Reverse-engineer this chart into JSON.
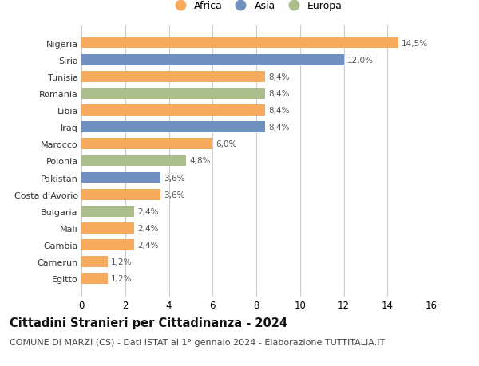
{
  "countries": [
    "Nigeria",
    "Siria",
    "Tunisia",
    "Romania",
    "Libia",
    "Iraq",
    "Marocco",
    "Polonia",
    "Pakistan",
    "Costa d'Avorio",
    "Bulgaria",
    "Mali",
    "Gambia",
    "Camerun",
    "Egitto"
  ],
  "values": [
    14.5,
    12.0,
    8.4,
    8.4,
    8.4,
    8.4,
    6.0,
    4.8,
    3.6,
    3.6,
    2.4,
    2.4,
    2.4,
    1.2,
    1.2
  ],
  "continents": [
    "Africa",
    "Asia",
    "Africa",
    "Europa",
    "Africa",
    "Asia",
    "Africa",
    "Europa",
    "Asia",
    "Africa",
    "Europa",
    "Africa",
    "Africa",
    "Africa",
    "Africa"
  ],
  "colors": {
    "Africa": "#F5AA5E",
    "Asia": "#7090C0",
    "Europa": "#ABBE8C"
  },
  "legend_labels": [
    "Africa",
    "Asia",
    "Europa"
  ],
  "xlim": [
    0,
    16
  ],
  "xticks": [
    0,
    2,
    4,
    6,
    8,
    10,
    12,
    14,
    16
  ],
  "title": "Cittadini Stranieri per Cittadinanza - 2024",
  "subtitle": "COMUNE DI MARZI (CS) - Dati ISTAT al 1° gennaio 2024 - Elaborazione TUTTITALIA.IT",
  "title_fontsize": 10.5,
  "subtitle_fontsize": 8.0,
  "bar_height": 0.65,
  "bg_color": "#FFFFFF",
  "grid_color": "#CCCCCC",
  "label_fontsize": 7.5,
  "ytick_fontsize": 8.0,
  "xtick_fontsize": 8.5
}
